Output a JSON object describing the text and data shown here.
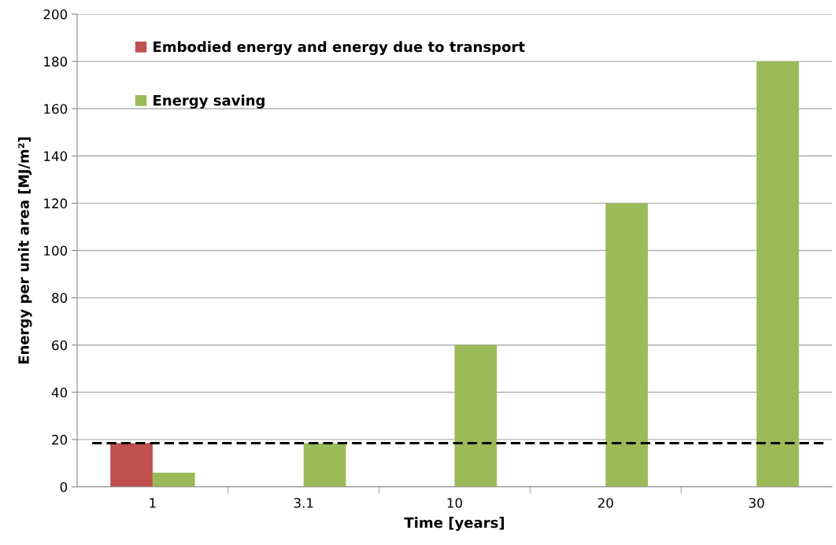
{
  "chart_data": {
    "type": "bar",
    "xlabel": "Time [years]",
    "ylabel": "Energy per unit area [MJ/m²]",
    "categories": [
      "1",
      "3.1",
      "10",
      "20",
      "30"
    ],
    "series": [
      {
        "name": "Embodied energy and energy due to transport",
        "color": "#c0504d",
        "values": [
          18.5,
          null,
          null,
          null,
          null
        ]
      },
      {
        "name": "Energy saving",
        "color": "#9bbb59",
        "values": [
          6,
          18.5,
          60,
          120,
          180
        ]
      }
    ],
    "ylim": [
      0,
      200
    ],
    "yticks": [
      0,
      20,
      40,
      60,
      80,
      100,
      120,
      140,
      160,
      180,
      200
    ],
    "ref_lines": [
      {
        "axis": "y",
        "value": 18.5,
        "color": "#000000",
        "line_style": "dashed"
      }
    ],
    "grid": "y",
    "legend": "top left"
  }
}
